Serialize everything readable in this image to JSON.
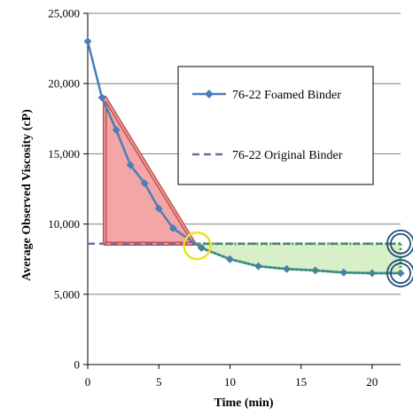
{
  "chart_data": {
    "type": "line",
    "title": "",
    "xlabel": "Time (min)",
    "ylabel": "Average Observed Viscosity (cP)",
    "xlim": [
      0,
      22
    ],
    "ylim": [
      0,
      25000
    ],
    "grid": "horizontal",
    "legend_position": "top-right",
    "x_tick_labels": [
      "0",
      "5",
      "10",
      "15",
      "20"
    ],
    "x_ticks": [
      0,
      5,
      10,
      15,
      20
    ],
    "y_tick_labels": [
      "0",
      "5,000",
      "10,000",
      "15,000",
      "20,000",
      "25,000"
    ],
    "y_ticks": [
      0,
      5000,
      10000,
      15000,
      20000,
      25000
    ],
    "series": [
      {
        "name": "76-22 Foamed Binder",
        "style": "solid-diamond",
        "color": "#4a7ebb",
        "x": [
          0,
          1,
          2,
          3,
          4,
          5,
          6,
          8,
          10,
          12,
          14,
          16,
          18,
          20,
          22
        ],
        "y": [
          23000,
          19000,
          16700,
          14200,
          12900,
          11100,
          9700,
          8300,
          7500,
          7000,
          6800,
          6700,
          6550,
          6500,
          6500
        ]
      },
      {
        "name": "76-22 Original Binder",
        "style": "dashed",
        "color": "#8064a2",
        "x": [
          0,
          22
        ],
        "y": [
          8600,
          8600
        ]
      }
    ],
    "annotations": {
      "red_triangle": {
        "color": "#c0504d",
        "fill": "#f4a6a6",
        "points": [
          [
            1.2,
            19000
          ],
          [
            1.2,
            8600
          ],
          [
            7.5,
            8600
          ]
        ]
      },
      "green_region": {
        "color": "#2e9e44",
        "fill": "#d8f0c8",
        "x_range": [
          7.5,
          22
        ],
        "top": 8600,
        "bottom_curve": [
          [
            8,
            8300
          ],
          [
            10,
            7500
          ],
          [
            12,
            7000
          ],
          [
            14,
            6800
          ],
          [
            16,
            6700
          ],
          [
            18,
            6550
          ],
          [
            20,
            6500
          ],
          [
            22,
            6500
          ]
        ]
      },
      "yellow_circle": {
        "color": "#f0e020",
        "center": [
          7.7,
          8450
        ]
      },
      "blue_circles": {
        "color": "#1f4e79",
        "centers": [
          [
            22,
            8600
          ],
          [
            22,
            6500
          ]
        ]
      }
    }
  }
}
